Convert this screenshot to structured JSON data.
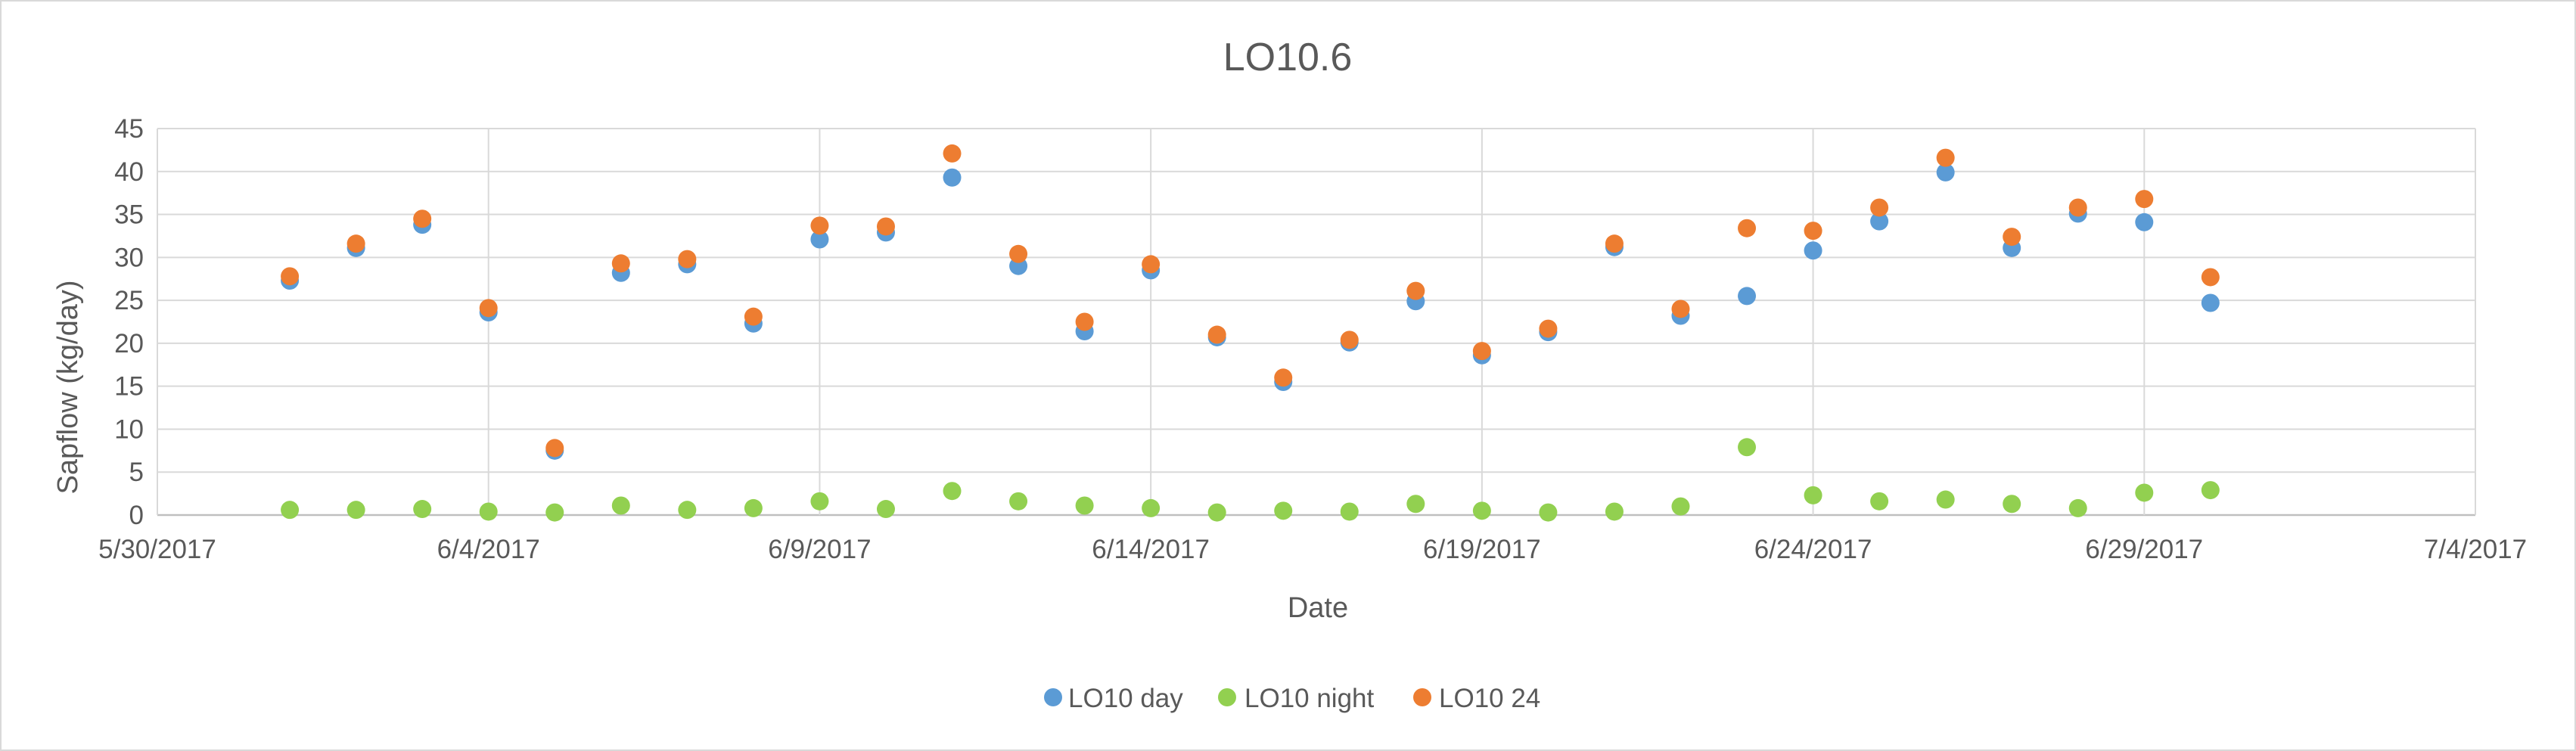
{
  "chart_data": {
    "type": "scatter",
    "title": "LO10.6",
    "xlabel": "Date",
    "ylabel": "Sapflow (kg/day)",
    "x_axis_type": "date",
    "xlim": [
      "2017-05-30",
      "2017-07-04"
    ],
    "ylim": [
      0,
      45
    ],
    "y_ticks": [
      0,
      5,
      10,
      15,
      20,
      25,
      30,
      35,
      40,
      45
    ],
    "x_ticks": [
      "2017-05-30",
      "2017-06-04",
      "2017-06-09",
      "2017-06-14",
      "2017-06-19",
      "2017-06-24",
      "2017-06-29",
      "2017-07-04"
    ],
    "x_tick_labels": [
      "5/30/2017",
      "6/4/2017",
      "6/9/2017",
      "6/14/2017",
      "6/19/2017",
      "6/24/2017",
      "6/29/2017",
      "7/4/2017"
    ],
    "grid": true,
    "legend_position": "bottom",
    "x": [
      "2017-06-01",
      "2017-06-02",
      "2017-06-03",
      "2017-06-04",
      "2017-06-05",
      "2017-06-06",
      "2017-06-07",
      "2017-06-08",
      "2017-06-09",
      "2017-06-10",
      "2017-06-11",
      "2017-06-12",
      "2017-06-13",
      "2017-06-14",
      "2017-06-15",
      "2017-06-16",
      "2017-06-17",
      "2017-06-18",
      "2017-06-19",
      "2017-06-20",
      "2017-06-21",
      "2017-06-22",
      "2017-06-23",
      "2017-06-24",
      "2017-06-25",
      "2017-06-26",
      "2017-06-27",
      "2017-06-28",
      "2017-06-29",
      "2017-06-30"
    ],
    "series": [
      {
        "name": "LO10 day",
        "color": "#5b9bd5",
        "values": [
          27.3,
          31.1,
          33.8,
          23.6,
          7.5,
          28.2,
          29.2,
          22.3,
          32.1,
          32.9,
          39.3,
          29.0,
          21.4,
          28.5,
          20.7,
          15.5,
          20.1,
          24.9,
          18.6,
          21.3,
          31.2,
          23.2,
          25.5,
          30.8,
          34.2,
          39.9,
          31.1,
          35.1,
          34.1,
          24.7
        ]
      },
      {
        "name": "LO10 night",
        "color": "#92d050",
        "values": [
          0.6,
          0.6,
          0.7,
          0.4,
          0.3,
          1.1,
          0.6,
          0.8,
          1.6,
          0.7,
          2.8,
          1.6,
          1.1,
          0.8,
          0.3,
          0.5,
          0.4,
          1.3,
          0.5,
          0.3,
          0.4,
          1.0,
          7.9,
          2.3,
          1.6,
          1.8,
          1.3,
          0.8,
          2.6,
          2.9
        ]
      },
      {
        "name": "LO10 24",
        "color": "#ed7d31",
        "values": [
          27.8,
          31.6,
          34.5,
          24.1,
          7.8,
          29.3,
          29.8,
          23.1,
          33.7,
          33.6,
          42.1,
          30.4,
          22.5,
          29.2,
          21.0,
          16.0,
          20.4,
          26.1,
          19.1,
          21.7,
          31.6,
          24.0,
          33.4,
          33.1,
          35.8,
          41.6,
          32.4,
          35.8,
          36.8,
          27.7
        ]
      }
    ]
  }
}
